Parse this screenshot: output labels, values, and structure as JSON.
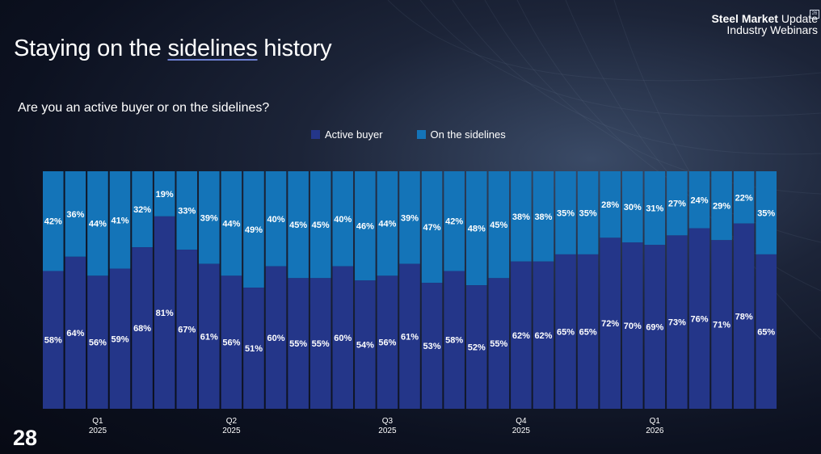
{
  "slide": {
    "title_pre": "Staying on the ",
    "title_underlined": "sidelines",
    "title_post": " history",
    "page_number": "28"
  },
  "logo": {
    "line1_bold": "Steel Market",
    "line1_rest": " Update",
    "line2": "Industry Webinars",
    "badge": "26"
  },
  "colors": {
    "active": "#243689",
    "sidelines": "#1474b8",
    "text": "#ffffff"
  },
  "chart_data": {
    "type": "bar",
    "stacked": true,
    "percent": true,
    "title": "Are you an active buyer or on the sidelines?",
    "ylim": [
      0,
      100
    ],
    "legend": [
      "Active buyer",
      "On the sidelines"
    ],
    "legend_position": "top",
    "series": [
      {
        "name": "Active buyer",
        "values": [
          58,
          64,
          56,
          59,
          68,
          81,
          67,
          61,
          56,
          51,
          60,
          55,
          55,
          60,
          54,
          56,
          61,
          53,
          58,
          52,
          55,
          62,
          62,
          65,
          65,
          72,
          70,
          69,
          73,
          76,
          71,
          78,
          65
        ]
      },
      {
        "name": "On the sidelines",
        "values": [
          42,
          36,
          44,
          41,
          32,
          19,
          33,
          39,
          44,
          49,
          40,
          45,
          45,
          40,
          46,
          44,
          39,
          47,
          42,
          48,
          45,
          38,
          38,
          35,
          35,
          28,
          30,
          31,
          27,
          24,
          29,
          22,
          35
        ]
      }
    ],
    "x_tick_labels": [
      {
        "index": 2,
        "line1": "Q1",
        "line2": "2025"
      },
      {
        "index": 8,
        "line1": "Q2",
        "line2": "2025"
      },
      {
        "index": 15,
        "line1": "Q3",
        "line2": "2025"
      },
      {
        "index": 21,
        "line1": "Q4",
        "line2": "2025"
      },
      {
        "index": 27,
        "line1": "Q1",
        "line2": "2026"
      }
    ]
  }
}
